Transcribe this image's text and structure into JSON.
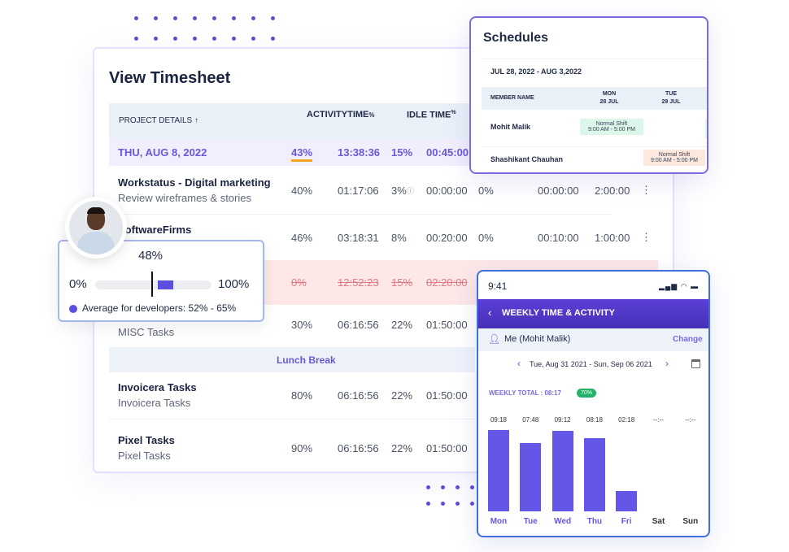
{
  "timesheet": {
    "title": "View Timesheet",
    "headers": {
      "project": "PROJECT DETAILS ↑",
      "activity": "ACTIVITYTIME",
      "activity_unit": "%",
      "idle": "IDLE TIME",
      "idle_unit": "%"
    },
    "date_row": {
      "date": "THU, AUG 8, 2022",
      "activity_pct": "43%",
      "activity_time": "13:38:36",
      "idle_pct": "15%",
      "idle_time": "00:45:00"
    },
    "rows": [
      {
        "title": "Workstatus - Digital marketing",
        "sub": "Review wireframes & stories",
        "c": [
          "40%",
          "01:17:06",
          "3%",
          "00:00:00",
          "0%",
          "00:00:00",
          "2:00:00"
        ]
      },
      {
        "title": "SoftwareFirms",
        "sub": "",
        "c": [
          "46%",
          "03:18:31",
          "8%",
          "00:20:00",
          "0%",
          "00:10:00",
          "1:00:00"
        ]
      },
      {
        "title": "",
        "sub": "",
        "c": [
          "0%",
          "12:52:23",
          "15%",
          "02:20:00"
        ],
        "struck": true
      },
      {
        "title": "MISC Tasks",
        "sub": "MISC Tasks",
        "c": [
          "30%",
          "06:16:56",
          "22%",
          "01:50:00"
        ]
      },
      {
        "title": "Invoicera Tasks",
        "sub": "Invoicera Tasks",
        "c": [
          "80%",
          "06:16:56",
          "22%",
          "01:50:00"
        ]
      },
      {
        "title": "Pixel Tasks",
        "sub": "Pixel Tasks",
        "c": [
          "90%",
          "06:16:56",
          "22%",
          "01:50:00"
        ]
      }
    ],
    "lunch": "Lunch Break"
  },
  "schedules": {
    "title": "Schedules",
    "range": "JUL 28, 2022 - AUG 3,2022",
    "member_header": "MEMBER NAME",
    "days": [
      {
        "d": "MON",
        "n": "28 JUL"
      },
      {
        "d": "TUE",
        "n": "29 JUL"
      }
    ],
    "members": [
      {
        "name": "Mohit Malik",
        "shift": "Normal Shift",
        "time": "9:00 AM - 5:00 PM",
        "color": "#dcf7ea"
      },
      {
        "name": "Shashikant Chauhan",
        "shift": "Normal Shift",
        "time": "9:00 AM - 5:00 PM",
        "color": "#fde8de"
      }
    ]
  },
  "tooltip": {
    "value": "48%",
    "min": "0%",
    "max": "100%",
    "legend": "Average for developers: 52% - 65%",
    "value_pct": 48,
    "range": [
      52,
      65
    ],
    "accent": "#5b4fe0"
  },
  "phone": {
    "time": "9:41",
    "title": "WEEKLY TIME & ACTIVITY",
    "user": "Me (Mohit Malik)",
    "change": "Change",
    "range": "Tue, Aug 31 2021 - Sun, Sep 06 2021",
    "weekly_label": "WEEKLY TOTAL :",
    "weekly_total": "08:17",
    "badge": "70%"
  },
  "chart_data": {
    "type": "bar",
    "categories": [
      "Mon",
      "Tue",
      "Wed",
      "Thu",
      "Fri",
      "Sat",
      "Sun"
    ],
    "labels": [
      "09:18",
      "07:48",
      "09:12",
      "08:18",
      "02:18",
      "--:--",
      "--:--"
    ],
    "values": [
      9.3,
      7.8,
      9.2,
      8.3,
      2.3,
      0,
      0
    ],
    "color": "#6456e6"
  }
}
